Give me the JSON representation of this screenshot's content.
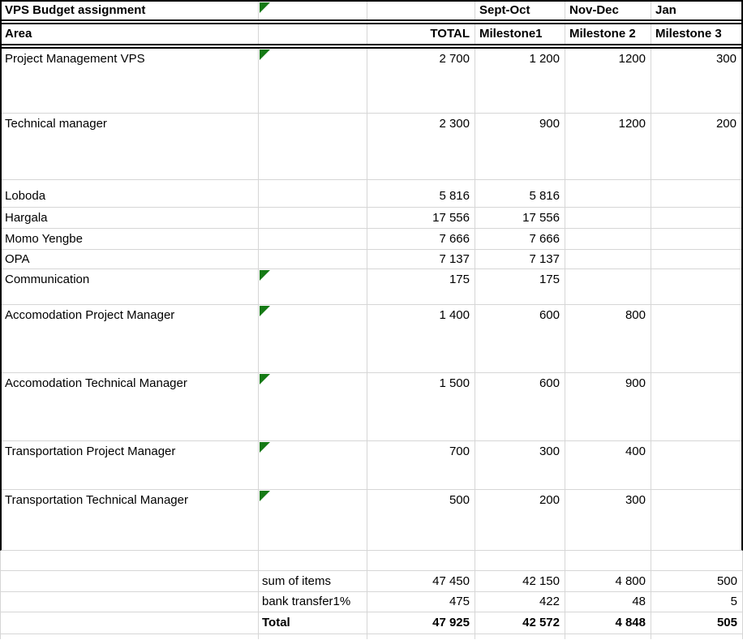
{
  "colors": {
    "grid": "#d6d6d6",
    "border": "#000000",
    "flag_green": "#157a15",
    "text": "#000000",
    "background": "#ffffff"
  },
  "sheet": {
    "title": "VPS Budget assignment",
    "months": [
      "Sept-Oct",
      "Nov-Dec",
      "Jan"
    ],
    "headers": {
      "area": "Area",
      "total": "TOTAL",
      "m1": "Milestone1",
      "m2": "Milestone 2",
      "m3": "Milestone 3"
    },
    "rows": [
      {
        "area": "Project Management VPS",
        "total": "2 700",
        "m1": "1 200",
        "m2": "1200",
        "m3": "300"
      },
      {
        "area": "Technical manager",
        "total": "2 300",
        "m1": "900",
        "m2": "1200",
        "m3": "200"
      },
      {
        "area": "Loboda",
        "total": "5 816",
        "m1": "5 816",
        "m2": "",
        "m3": ""
      },
      {
        "area": "Hargala",
        "total": "17 556",
        "m1": "17 556",
        "m2": "",
        "m3": ""
      },
      {
        "area": "Momo Yengbe",
        "total": "7 666",
        "m1": "7 666",
        "m2": "",
        "m3": ""
      },
      {
        "area": "OPA",
        "total": "7 137",
        "m1": "7 137",
        "m2": "",
        "m3": ""
      },
      {
        "area": "Communication",
        "total": "175",
        "m1": "175",
        "m2": "",
        "m3": ""
      },
      {
        "area": "Accomodation Project Manager",
        "total": "1 400",
        "m1": "600",
        "m2": "800",
        "m3": ""
      },
      {
        "area": "Accomodation Technical Manager",
        "total": "1 500",
        "m1": "600",
        "m2": "900",
        "m3": ""
      },
      {
        "area": "Transportation Project Manager",
        "total": "700",
        "m1": "300",
        "m2": "400",
        "m3": ""
      },
      {
        "area": "Transportation Technical Manager",
        "total": "500",
        "m1": "200",
        "m2": "300",
        "m3": ""
      }
    ],
    "summary": [
      {
        "label": "sum of items",
        "total": "47 450",
        "m1": "42 150",
        "m2": "4 800",
        "m3": "500"
      },
      {
        "label": "bank transfer1%",
        "total": "475",
        "m1": "422",
        "m2": "48",
        "m3": "5"
      },
      {
        "label": "Total",
        "total": "47 925",
        "m1": "42 572",
        "m2": "4 848",
        "m3": "505"
      }
    ]
  }
}
